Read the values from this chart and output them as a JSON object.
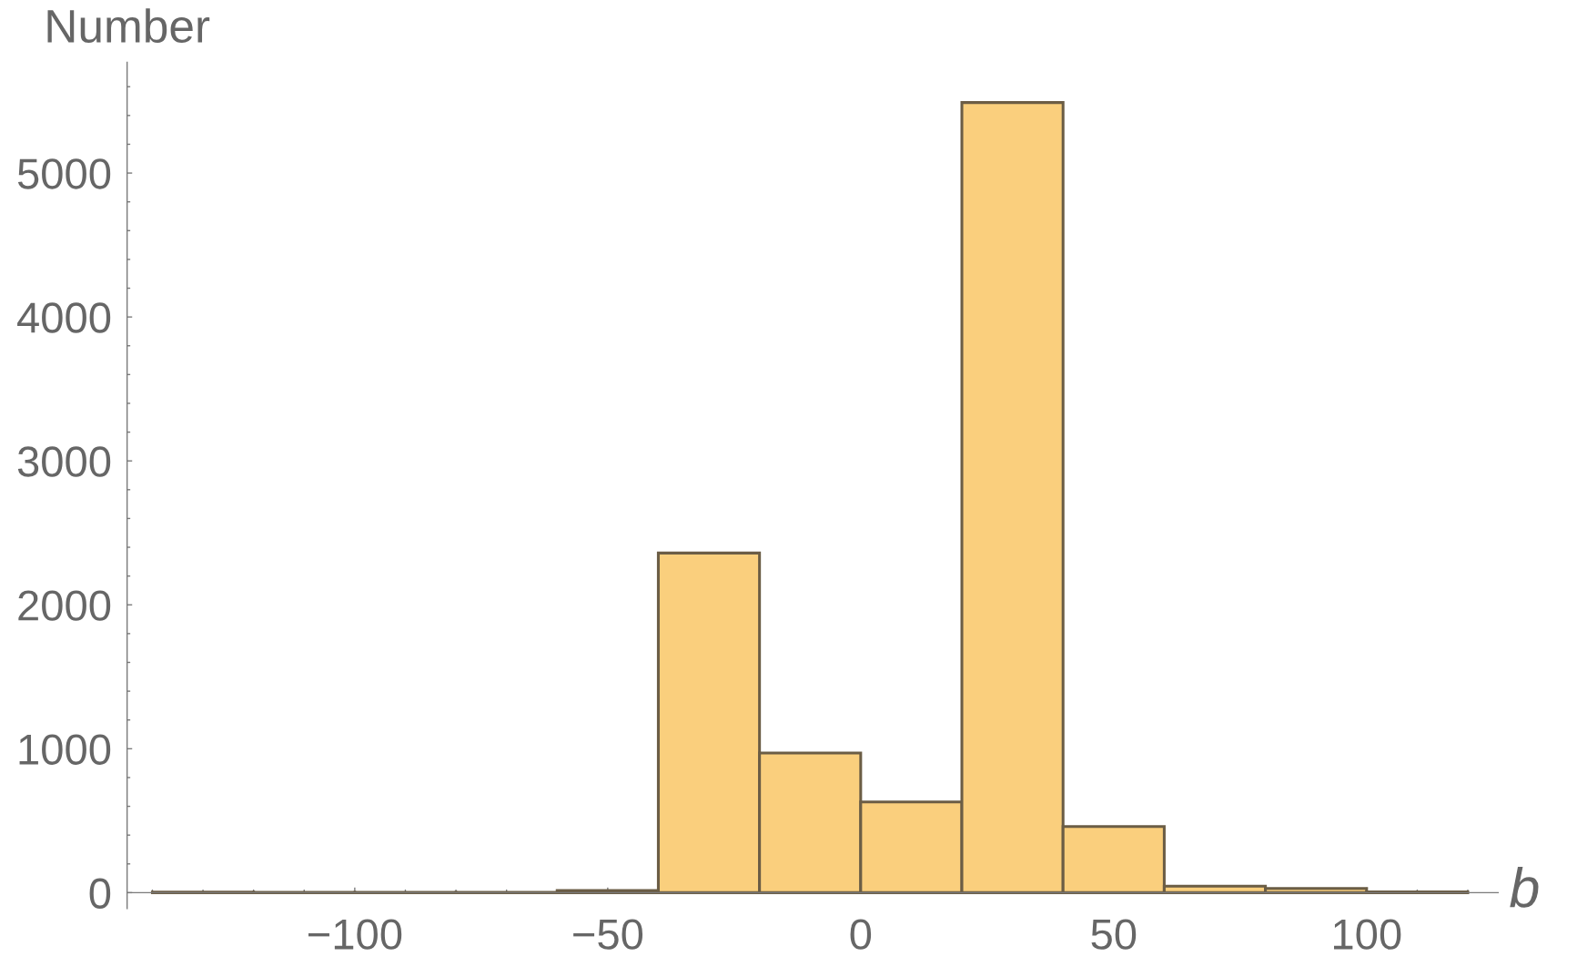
{
  "chart_data": {
    "type": "histogram",
    "xlabel": "b",
    "ylabel": "Number",
    "bins": [
      -140,
      -120,
      -100,
      -80,
      -60,
      -40,
      -20,
      0,
      20,
      40,
      60,
      80,
      100,
      120
    ],
    "values": [
      4,
      2,
      3,
      3,
      15,
      2360,
      970,
      630,
      5490,
      460,
      45,
      30,
      5
    ],
    "color": "#facf7d",
    "xlim": [
      -145,
      126
    ],
    "ylim": [
      -110,
      5770
    ],
    "xticks": [
      {
        "value": -140,
        "label": null
      },
      {
        "value": -130,
        "label": null
      },
      {
        "value": -120,
        "label": null
      },
      {
        "value": -110,
        "label": null
      },
      {
        "value": -100,
        "label": "−100"
      },
      {
        "value": -90,
        "label": null
      },
      {
        "value": -80,
        "label": null
      },
      {
        "value": -70,
        "label": null
      },
      {
        "value": -60,
        "label": null
      },
      {
        "value": -50,
        "label": "−50"
      },
      {
        "value": -40,
        "label": null
      },
      {
        "value": -30,
        "label": null
      },
      {
        "value": -20,
        "label": null
      },
      {
        "value": -10,
        "label": null
      },
      0,
      {
        "value": 10,
        "label": null
      },
      {
        "value": 20,
        "label": null
      },
      {
        "value": 30,
        "label": null
      },
      {
        "value": 40,
        "label": null
      },
      50,
      {
        "value": 60,
        "label": null
      },
      {
        "value": 70,
        "label": null
      },
      {
        "value": 80,
        "label": null
      },
      {
        "value": 90,
        "label": null
      },
      100,
      {
        "value": 110,
        "label": null
      },
      {
        "value": 120,
        "label": null
      }
    ],
    "yticks": [
      0,
      {
        "value": 200,
        "label": null
      },
      {
        "value": 400,
        "label": null
      },
      {
        "value": 600,
        "label": null
      },
      {
        "value": 800,
        "label": null
      },
      1000,
      {
        "value": 1200,
        "label": null
      },
      {
        "value": 1400,
        "label": null
      },
      {
        "value": 1600,
        "label": null
      },
      {
        "value": 1800,
        "label": null
      },
      2000,
      {
        "value": 2200,
        "label": null
      },
      {
        "value": 2400,
        "label": null
      },
      {
        "value": 2600,
        "label": null
      },
      {
        "value": 2800,
        "label": null
      },
      3000,
      {
        "value": 3200,
        "label": null
      },
      {
        "value": 3400,
        "label": null
      },
      {
        "value": 3600,
        "label": null
      },
      {
        "value": 3800,
        "label": null
      },
      4000,
      {
        "value": 4200,
        "label": null
      },
      {
        "value": 4400,
        "label": null
      },
      {
        "value": 4600,
        "label": null
      },
      {
        "value": 4800,
        "label": null
      },
      5000,
      {
        "value": 5200,
        "label": null
      },
      {
        "value": 5400,
        "label": null
      },
      {
        "value": 5600,
        "label": null
      }
    ]
  }
}
